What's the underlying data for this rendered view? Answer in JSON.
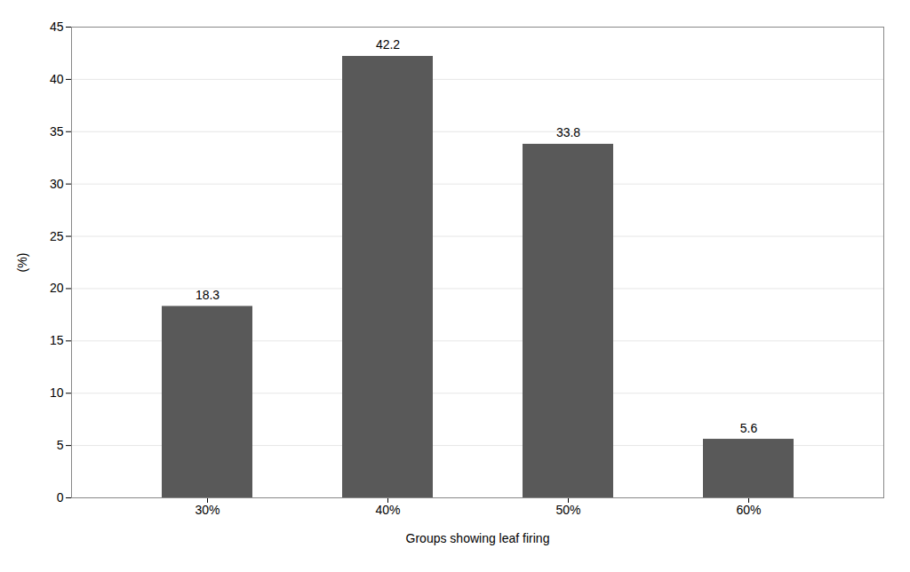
{
  "chart_data": {
    "type": "bar",
    "categories": [
      "30%",
      "40%",
      "50%",
      "60%"
    ],
    "values": [
      18.3,
      42.2,
      33.8,
      5.6
    ],
    "color": "#595959",
    "xlabel": "Groups showing leaf firing",
    "ylabel": "(%)",
    "ylim": [
      0,
      45
    ],
    "yticks": [
      0,
      5,
      10,
      15,
      20,
      25,
      30,
      35,
      40,
      45
    ],
    "grid": true,
    "data_labels": true
  }
}
